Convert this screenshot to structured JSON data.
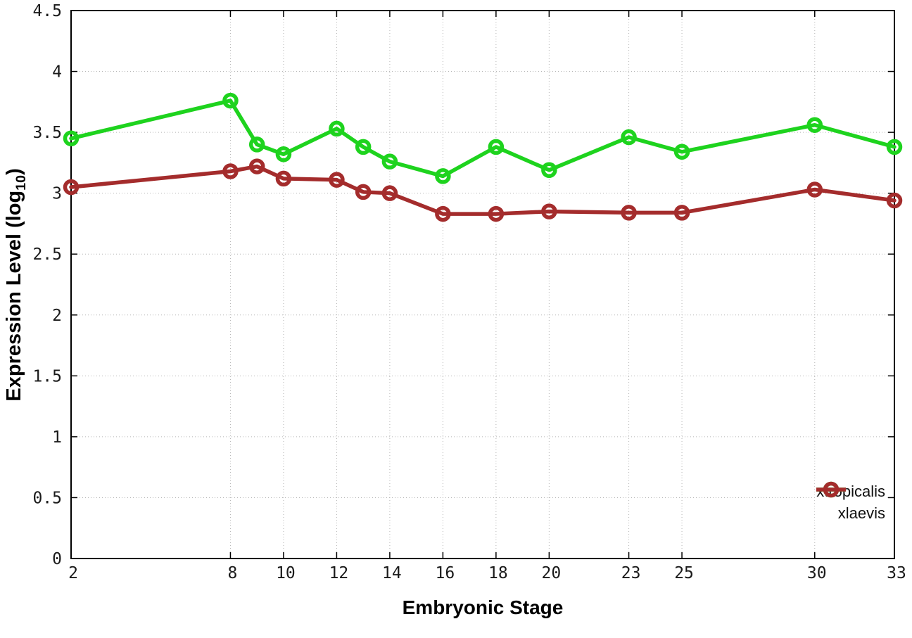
{
  "chart_data": {
    "type": "line",
    "title": "",
    "xlabel": "Embryonic Stage",
    "ylabel": "Expression Level (log10)",
    "ylabel_parts": {
      "main": "Expression Level (log",
      "sub": "10",
      "close": ")"
    },
    "xlim": [
      2,
      33
    ],
    "ylim": [
      0,
      4.5
    ],
    "grid": "dotted",
    "grid_color": "#b5b5b5",
    "axis_color": "#000000",
    "background_color": "#ffffff",
    "legend_position": "bottom-right-inside",
    "xticks": {
      "values": [
        2,
        8,
        10,
        12,
        14,
        16,
        18,
        20,
        23,
        25,
        30,
        33
      ],
      "labels": [
        "2",
        "8",
        "10",
        "12",
        "14",
        "16",
        "18",
        "20",
        "23",
        "25",
        "30",
        "33"
      ]
    },
    "yticks": {
      "values": [
        0,
        0.5,
        1,
        1.5,
        2,
        2.5,
        3,
        3.5,
        4,
        4.5
      ],
      "labels": [
        "0",
        "0.5",
        "1",
        "1.5",
        "2",
        "2.5",
        "3",
        "3.5",
        "4",
        "4.5"
      ]
    },
    "x": [
      2,
      8,
      9,
      10,
      12,
      13,
      14,
      16,
      18,
      20,
      23,
      25,
      30,
      33
    ],
    "series": [
      {
        "name": "xtropicalis",
        "color": "#1ed31e",
        "marker": "open-circle",
        "values": [
          3.45,
          3.76,
          3.4,
          3.32,
          3.53,
          3.38,
          3.26,
          3.14,
          3.38,
          3.19,
          3.46,
          3.34,
          3.56,
          3.38
        ]
      },
      {
        "name": "xlaevis",
        "color": "#a42c2c",
        "marker": "open-circle",
        "values": [
          3.05,
          3.18,
          3.22,
          3.12,
          3.11,
          3.01,
          3.0,
          2.83,
          2.83,
          2.85,
          2.84,
          2.84,
          3.03,
          2.94
        ]
      }
    ]
  }
}
